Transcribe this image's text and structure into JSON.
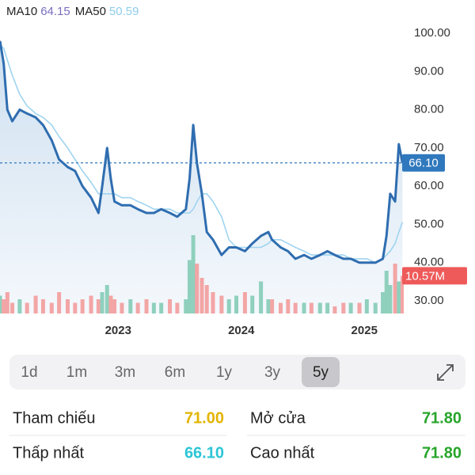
{
  "chart_data": {
    "type": "line",
    "indicators": [
      {
        "name": "MA10",
        "value": "64.15",
        "color": "#7a6fc0"
      },
      {
        "name": "MA50",
        "value": "50.59",
        "color": "#8fcdee"
      }
    ],
    "x": [
      2022.04,
      2022.07,
      2022.1,
      2022.14,
      2022.2,
      2022.26,
      2022.33,
      2022.39,
      2022.46,
      2022.52,
      2022.59,
      2022.65,
      2022.71,
      2022.78,
      2022.84,
      2022.87,
      2022.91,
      2022.94,
      2022.97,
      2023.03,
      2023.1,
      2023.16,
      2023.23,
      2023.29,
      2023.35,
      2023.42,
      2023.48,
      2023.55,
      2023.58,
      2023.61,
      2023.64,
      2023.68,
      2023.72,
      2023.77,
      2023.84,
      2023.9,
      2023.96,
      2024.03,
      2024.09,
      2024.16,
      2024.22,
      2024.25,
      2024.32,
      2024.38,
      2024.44,
      2024.51,
      2024.57,
      2024.64,
      2024.7,
      2024.76,
      2024.83,
      2024.89,
      2024.96,
      2025.02,
      2025.09,
      2025.15,
      2025.18,
      2025.21,
      2025.25,
      2025.28,
      2025.31
    ],
    "series": [
      {
        "color": "#2f6db0",
        "values": [
          98,
          92,
          80,
          77,
          80,
          79,
          78,
          76,
          72,
          67,
          65,
          64,
          60,
          57,
          53,
          60,
          70,
          62,
          56,
          55,
          55,
          54,
          53,
          53,
          54,
          53,
          52,
          54,
          62,
          76,
          66,
          58,
          48,
          46,
          42,
          44,
          44,
          43,
          45,
          47,
          48,
          46,
          44,
          43,
          41,
          42,
          41,
          42,
          43,
          42,
          41,
          41,
          40,
          40,
          40,
          41,
          47,
          58,
          56,
          71,
          66.1
        ]
      },
      {
        "name": "MA50",
        "color": "#9fd4f0",
        "values": [
          97,
          96,
          93,
          89,
          84,
          81,
          79,
          78,
          76,
          73,
          70,
          67,
          64,
          61,
          58,
          58,
          58,
          58,
          58,
          57,
          57,
          56,
          55,
          54,
          54,
          54,
          53,
          53,
          53,
          54,
          56,
          58,
          58,
          56,
          52,
          46,
          44,
          44,
          44,
          44,
          45,
          46,
          46,
          45,
          44,
          43,
          42,
          42,
          42,
          42,
          42,
          41,
          41,
          41,
          40,
          41,
          42,
          43,
          45,
          48,
          50.59
        ]
      },
      {
        "type": "bar",
        "axis": "y2",
        "up_color": "#8fd0bd",
        "down_color": "#f3a5a5",
        "values": [
          5,
          4,
          6,
          3,
          4,
          3,
          5,
          4,
          3,
          6,
          4,
          3,
          4,
          5,
          4,
          6,
          8,
          5,
          4,
          3,
          4,
          3,
          4,
          3,
          3,
          4,
          3,
          4,
          15,
          22,
          14,
          10,
          8,
          6,
          5,
          4,
          5,
          6,
          5,
          9,
          4,
          4,
          3,
          4,
          3,
          3,
          3,
          3,
          3,
          2,
          3,
          3,
          3,
          4,
          3,
          6,
          12,
          8,
          14,
          9,
          10.57
        ]
      }
    ],
    "xlim": [
      2022.04,
      2025.32
    ],
    "xticks": [
      2023,
      2024,
      2025
    ],
    "ylim": [
      26.7,
      108.7
    ],
    "yticks": [
      {
        "value": 30,
        "label": "30.00"
      },
      {
        "value": 40,
        "label": "40.00"
      },
      {
        "value": 50,
        "label": "50.00"
      },
      {
        "value": 60,
        "label": "60.00"
      },
      {
        "value": 70,
        "label": "70.00"
      },
      {
        "value": 80,
        "label": "80.00"
      },
      {
        "value": 90,
        "label": "90.00"
      },
      {
        "value": 100,
        "label": "100.00"
      }
    ],
    "y2lim": [
      0,
      88
    ],
    "last_price": {
      "value": 66.1,
      "label": "66.10",
      "color": "#2f78bd"
    },
    "last_volume": {
      "value": 10.57,
      "label": "10.57M",
      "color": "#ee5a5a"
    }
  },
  "periods": {
    "items": [
      "1d",
      "1m",
      "3m",
      "6m",
      "1y",
      "3y",
      "5y"
    ],
    "selected": 6
  },
  "stats": [
    {
      "label": "Tham chiếu",
      "value": "71.00",
      "color": "#e3b400"
    },
    {
      "label": "Mở cửa",
      "value": "71.80",
      "color": "#27a52a"
    },
    {
      "label": "Thấp nhất",
      "value": "66.10",
      "color": "#2cc6d6"
    },
    {
      "label": "Cao nhất",
      "value": "71.80",
      "color": "#27a52a"
    }
  ]
}
